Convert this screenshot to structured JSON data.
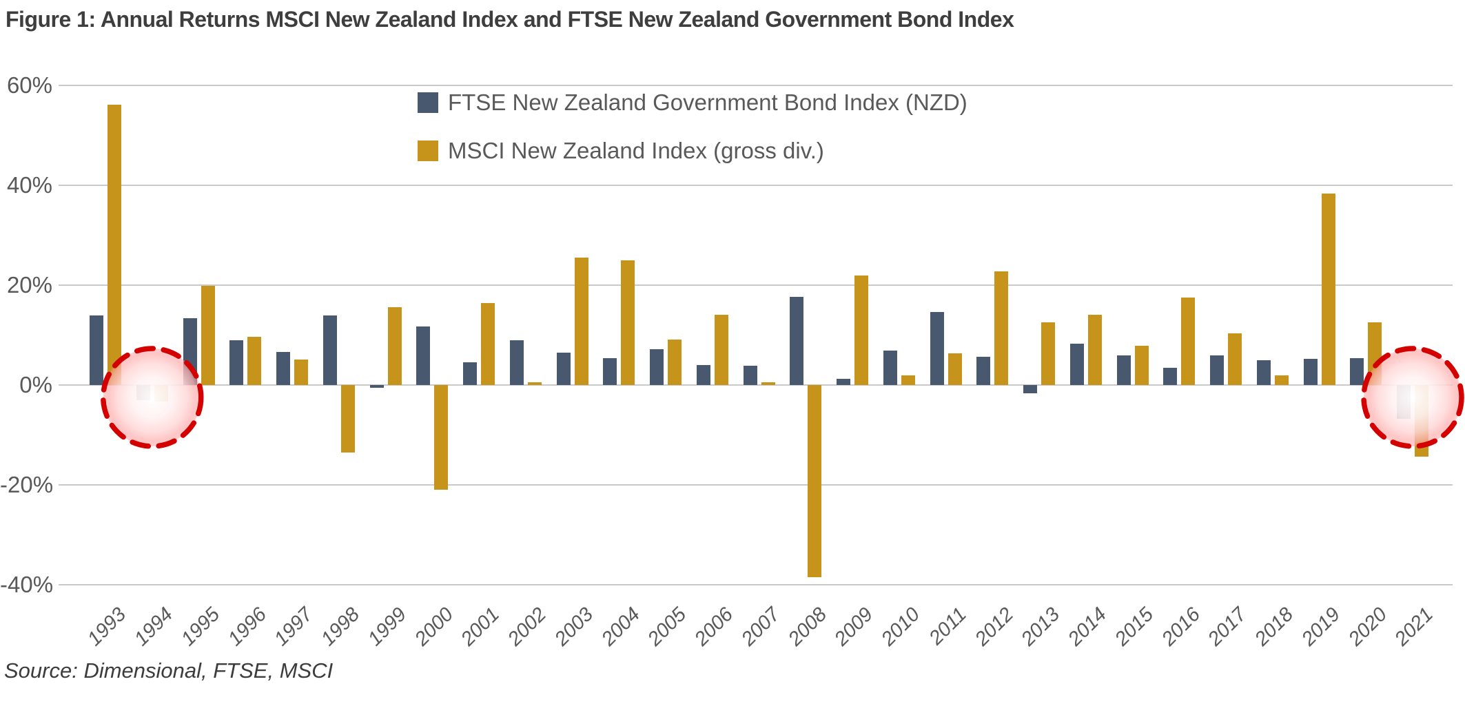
{
  "title": "Figure 1: Annual Returns MSCI New Zealand Index and FTSE New Zealand Government Bond Index",
  "source": "Source: Dimensional, FTSE, MSCI",
  "legend": [
    {
      "label": "FTSE New Zealand Government Bond Index (NZD)",
      "color": "#48586E"
    },
    {
      "label": "MSCI New Zealand Index (gross div.)",
      "color": "#C6941A"
    }
  ],
  "colors": {
    "bond_bar": "#48586E",
    "equity_bar": "#C6941A",
    "grid": "#C9C9C9",
    "axis_text": "#595959",
    "title_text": "#3E3E3E",
    "highlight_stroke": "#D40000"
  },
  "chart_data": {
    "type": "bar",
    "title": "Figure 1: Annual Returns MSCI New Zealand Index and FTSE New Zealand Government Bond Index",
    "xlabel": "",
    "ylabel": "",
    "ylim": [
      -45,
      65
    ],
    "grid": true,
    "legend_position": "top-center",
    "y_ticks": [
      {
        "label": "60%",
        "value": 60
      },
      {
        "label": "40%",
        "value": 40
      },
      {
        "label": "20%",
        "value": 20
      },
      {
        "label": "0%",
        "value": 0
      },
      {
        "label": "-20%",
        "value": -20
      },
      {
        "label": "-40%",
        "value": -40
      }
    ],
    "categories": [
      "1993",
      "1994",
      "1995",
      "1996",
      "1997",
      "1998",
      "1999",
      "2000",
      "2001",
      "2002",
      "2003",
      "2004",
      "2005",
      "2006",
      "2007",
      "2008",
      "2009",
      "2010",
      "2011",
      "2012",
      "2013",
      "2014",
      "2015",
      "2016",
      "2017",
      "2018",
      "2019",
      "2020",
      "2021"
    ],
    "series": [
      {
        "key": "bond",
        "name": "FTSE New Zealand Government Bond Index (NZD)",
        "color": "#48586E",
        "values": [
          14.0,
          -3.0,
          13.4,
          8.9,
          6.6,
          14.0,
          -0.6,
          11.7,
          4.6,
          9.0,
          6.5,
          5.4,
          7.2,
          4.0,
          3.9,
          17.6,
          1.2,
          6.9,
          14.6,
          5.6,
          -1.7,
          8.3,
          5.9,
          3.4,
          6.0,
          5.0,
          5.2,
          5.4,
          -6.7
        ]
      },
      {
        "key": "equity",
        "name": "MSCI New Zealand Index (gross div.)",
        "color": "#C6941A",
        "values": [
          56.2,
          -3.3,
          19.9,
          9.7,
          5.1,
          -13.5,
          15.6,
          -21.0,
          16.4,
          0.5,
          25.5,
          25.0,
          9.1,
          14.1,
          0.6,
          -38.5,
          22.0,
          1.9,
          6.4,
          22.7,
          12.6,
          14.1,
          7.9,
          17.5,
          10.4,
          2.0,
          38.4,
          12.5,
          -14.3
        ]
      }
    ],
    "annotations": [
      {
        "type": "circle-highlight",
        "year": "1994"
      },
      {
        "type": "circle-highlight",
        "year": "2021"
      }
    ]
  }
}
